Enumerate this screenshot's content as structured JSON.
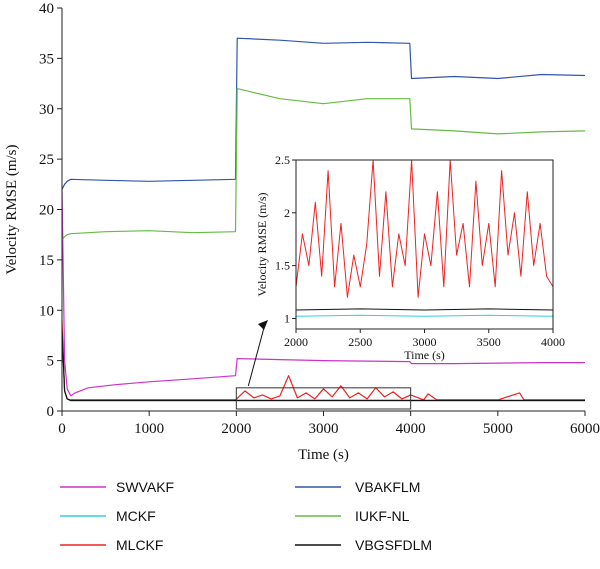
{
  "chart_data": [
    {
      "type": "line",
      "xlabel": "Time (s)",
      "ylabel": "Velocity RMSE (m/s)",
      "xlim": [
        0,
        6000
      ],
      "ylim": [
        0,
        40
      ],
      "xticks": [
        "0",
        "1000",
        "2000",
        "3000",
        "4000",
        "5000",
        "6000"
      ],
      "yticks": [
        "0",
        "5",
        "10",
        "15",
        "20",
        "25",
        "30",
        "35",
        "40"
      ],
      "grid": false,
      "legend_position": "bottom",
      "series": [
        {
          "name": "SWVAKF",
          "color": "#cc33cc",
          "x": [
            0,
            30,
            60,
            100,
            150,
            300,
            600,
            1000,
            1500,
            1990,
            2010,
            2500,
            3000,
            3500,
            3990,
            4010,
            4500,
            5000,
            5500,
            6000
          ],
          "y": [
            22,
            5,
            2.2,
            1.5,
            1.8,
            2.3,
            2.6,
            2.9,
            3.2,
            3.5,
            5.2,
            5.1,
            5.0,
            4.95,
            4.9,
            4.7,
            4.7,
            4.75,
            4.8,
            4.8
          ]
        },
        {
          "name": "MCKF",
          "color": "#33ccee",
          "x": [
            0,
            30,
            60,
            100,
            1000,
            2000,
            3000,
            4000,
            5000,
            6000
          ],
          "y": [
            8,
            2,
            1.2,
            1.0,
            1.0,
            1.0,
            1.0,
            1.0,
            1.0,
            1.0
          ]
        },
        {
          "name": "MLCKF",
          "color": "#ee2222",
          "x": [
            0,
            30,
            60,
            100,
            1000,
            1990,
            2100,
            2200,
            2300,
            2400,
            2500,
            2600,
            2700,
            2800,
            2900,
            3000,
            3100,
            3200,
            3300,
            3400,
            3500,
            3600,
            3700,
            3800,
            3900,
            4000,
            4150,
            4200,
            4300,
            4400,
            5000,
            5250,
            5300,
            6000
          ],
          "y": [
            9,
            2,
            1.2,
            1.1,
            1.1,
            1.1,
            2.0,
            1.3,
            1.6,
            1.2,
            1.5,
            3.5,
            1.3,
            1.8,
            1.2,
            2.2,
            1.4,
            2.5,
            1.3,
            1.8,
            1.2,
            2.3,
            1.4,
            1.9,
            1.2,
            1.6,
            1.1,
            1.7,
            1.1,
            1.1,
            1.1,
            1.8,
            1.1,
            1.1
          ]
        },
        {
          "name": "VBAKFLM",
          "color": "#3355aa",
          "x": [
            0,
            30,
            60,
            100,
            500,
            1000,
            1500,
            1990,
            2010,
            2500,
            3000,
            3500,
            3990,
            4010,
            4500,
            5000,
            5500,
            6000
          ],
          "y": [
            22,
            22.5,
            22.8,
            23,
            22.9,
            22.8,
            22.9,
            23,
            37,
            36.8,
            36.5,
            36.6,
            36.5,
            33,
            33.2,
            33.0,
            33.4,
            33.3
          ]
        },
        {
          "name": "IUKF-NL",
          "color": "#66bb44",
          "x": [
            0,
            30,
            60,
            100,
            500,
            1000,
            1500,
            1990,
            2010,
            2500,
            3000,
            3500,
            3990,
            4010,
            4500,
            5000,
            5500,
            6000
          ],
          "y": [
            17,
            17.3,
            17.5,
            17.6,
            17.8,
            17.9,
            17.7,
            17.8,
            32,
            31,
            30.5,
            31,
            31,
            28,
            27.8,
            27.5,
            27.7,
            27.8
          ]
        },
        {
          "name": "VBGSFDLM",
          "color": "#111111",
          "x": [
            0,
            30,
            60,
            100,
            1000,
            2000,
            3000,
            4000,
            5000,
            6000
          ],
          "y": [
            8,
            2,
            1.2,
            1.05,
            1.05,
            1.05,
            1.05,
            1.05,
            1.05,
            1.05
          ]
        }
      ]
    },
    {
      "type": "line",
      "xlabel": "Time (s)",
      "ylabel": "Velocity RMSE (m/s)",
      "xlim": [
        2000,
        4000
      ],
      "ylim": [
        0.9,
        2.5
      ],
      "xticks": [
        "2000",
        "2500",
        "3000",
        "3500",
        "4000"
      ],
      "yticks": [
        "1",
        "1.5",
        "2",
        "2.5"
      ],
      "series": [
        {
          "name": "MLCKF",
          "color": "#ee2222",
          "x": [
            2000,
            2050,
            2100,
            2150,
            2200,
            2250,
            2300,
            2350,
            2400,
            2450,
            2500,
            2550,
            2600,
            2650,
            2700,
            2750,
            2800,
            2850,
            2900,
            2950,
            3000,
            3050,
            3100,
            3150,
            3200,
            3250,
            3300,
            3350,
            3400,
            3450,
            3500,
            3550,
            3600,
            3650,
            3700,
            3750,
            3800,
            3850,
            3900,
            3950,
            4000
          ],
          "y": [
            1.3,
            1.8,
            1.5,
            2.1,
            1.4,
            2.4,
            1.3,
            1.9,
            1.2,
            1.6,
            1.3,
            1.7,
            2.5,
            1.4,
            2.2,
            1.3,
            1.8,
            1.5,
            2.5,
            1.2,
            1.8,
            1.5,
            2.2,
            1.3,
            2.5,
            1.6,
            1.9,
            1.3,
            2.3,
            1.5,
            1.9,
            1.3,
            2.4,
            1.6,
            2.0,
            1.4,
            2.2,
            1.5,
            1.9,
            1.4,
            1.3
          ]
        },
        {
          "name": "MCKF",
          "color": "#33ccee",
          "x": [
            2000,
            2500,
            3000,
            3500,
            4000
          ],
          "y": [
            1.02,
            1.03,
            1.02,
            1.03,
            1.02
          ]
        },
        {
          "name": "VBGSFDLM",
          "color": "#111111",
          "x": [
            2000,
            2500,
            3000,
            3500,
            4000
          ],
          "y": [
            1.08,
            1.09,
            1.08,
            1.09,
            1.08
          ]
        }
      ]
    }
  ]
}
